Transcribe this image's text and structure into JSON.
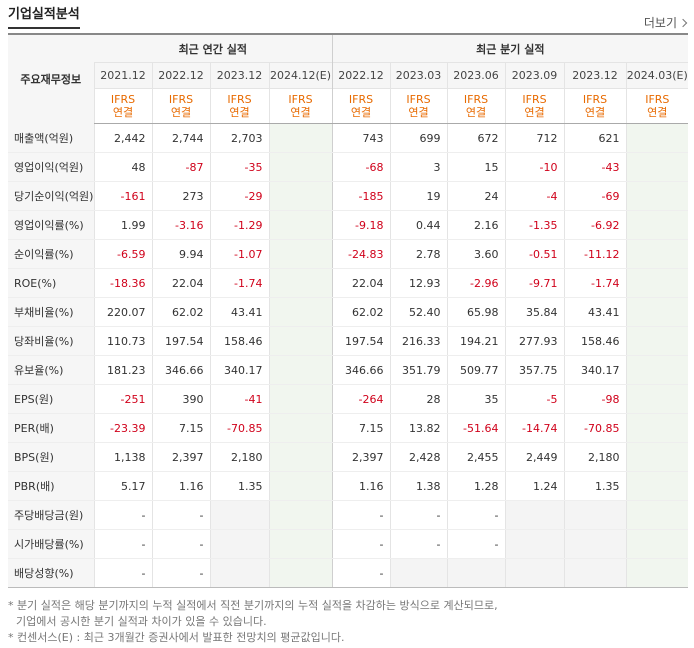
{
  "section": {
    "title": "기업실적분석",
    "more_label": "더보기"
  },
  "table": {
    "corner_label": "주요재무정보",
    "annual_header": "최근 연간 실적",
    "quarter_header": "최근 분기 실적",
    "annual_periods": [
      "2021.12",
      "2022.12",
      "2023.12",
      "2024.12(E)"
    ],
    "quarter_periods": [
      "2022.12",
      "2023.03",
      "2023.06",
      "2023.09",
      "2023.12",
      "2024.03(E)"
    ],
    "ifrs_line1": "IFRS",
    "ifrs_line2": "연결",
    "rows": [
      {
        "label": "매출액(억원)",
        "values": [
          "2,442",
          "2,744",
          "2,703",
          "",
          "743",
          "699",
          "672",
          "712",
          "621",
          ""
        ]
      },
      {
        "label": "영업이익(억원)",
        "values": [
          "48",
          "-87",
          "-35",
          "",
          "-68",
          "3",
          "15",
          "-10",
          "-43",
          ""
        ]
      },
      {
        "label": "당기순이익(억원)",
        "values": [
          "-161",
          "273",
          "-29",
          "",
          "-185",
          "19",
          "24",
          "-4",
          "-69",
          ""
        ]
      },
      {
        "label": "영업이익률(%)",
        "values": [
          "1.99",
          "-3.16",
          "-1.29",
          "",
          "-9.18",
          "0.44",
          "2.16",
          "-1.35",
          "-6.92",
          ""
        ]
      },
      {
        "label": "순이익률(%)",
        "values": [
          "-6.59",
          "9.94",
          "-1.07",
          "",
          "-24.83",
          "2.78",
          "3.60",
          "-0.51",
          "-11.12",
          ""
        ]
      },
      {
        "label": "ROE(%)",
        "values": [
          "-18.36",
          "22.04",
          "-1.74",
          "",
          "22.04",
          "12.93",
          "-2.96",
          "-9.71",
          "-1.74",
          ""
        ]
      },
      {
        "label": "부채비율(%)",
        "values": [
          "220.07",
          "62.02",
          "43.41",
          "",
          "62.02",
          "52.40",
          "65.98",
          "35.84",
          "43.41",
          ""
        ]
      },
      {
        "label": "당좌비율(%)",
        "values": [
          "110.73",
          "197.54",
          "158.46",
          "",
          "197.54",
          "216.33",
          "194.21",
          "277.93",
          "158.46",
          ""
        ]
      },
      {
        "label": "유보율(%)",
        "values": [
          "181.23",
          "346.66",
          "340.17",
          "",
          "346.66",
          "351.79",
          "509.77",
          "357.75",
          "340.17",
          ""
        ]
      },
      {
        "label": "EPS(원)",
        "values": [
          "-251",
          "390",
          "-41",
          "",
          "-264",
          "28",
          "35",
          "-5",
          "-98",
          ""
        ]
      },
      {
        "label": "PER(배)",
        "values": [
          "-23.39",
          "7.15",
          "-70.85",
          "",
          "7.15",
          "13.82",
          "-51.64",
          "-14.74",
          "-70.85",
          ""
        ]
      },
      {
        "label": "BPS(원)",
        "values": [
          "1,138",
          "2,397",
          "2,180",
          "",
          "2,397",
          "2,428",
          "2,455",
          "2,449",
          "2,180",
          ""
        ]
      },
      {
        "label": "PBR(배)",
        "values": [
          "5.17",
          "1.16",
          "1.35",
          "",
          "1.16",
          "1.38",
          "1.28",
          "1.24",
          "1.35",
          ""
        ]
      },
      {
        "label": "주당배당금(원)",
        "values": [
          "-",
          "-",
          "",
          "",
          "-",
          "-",
          "-",
          "",
          "",
          ""
        ]
      },
      {
        "label": "시가배당률(%)",
        "values": [
          "-",
          "-",
          "",
          "",
          "-",
          "-",
          "-",
          "",
          "",
          ""
        ]
      },
      {
        "label": "배당성향(%)",
        "values": [
          "-",
          "-",
          "",
          "",
          "-",
          "",
          "",
          "",
          "",
          ""
        ]
      }
    ]
  },
  "notes": [
    "* 분기 실적은 해당 분기까지의 누적 실적에서 직전 분기까지의 누적 실적을 차감하는 방식으로 계산되므로,",
    "기업에서 공시한 분기 실적과 차이가 있을 수 있습니다.",
    "* 컨센서스(E) : 최근 3개월간 증권사에서 발표한 전망치의 평균값입니다."
  ],
  "colors": {
    "negative": "#d0021b",
    "ifrs": "#e86a00",
    "estimate_bg": "#f1f6ef"
  }
}
